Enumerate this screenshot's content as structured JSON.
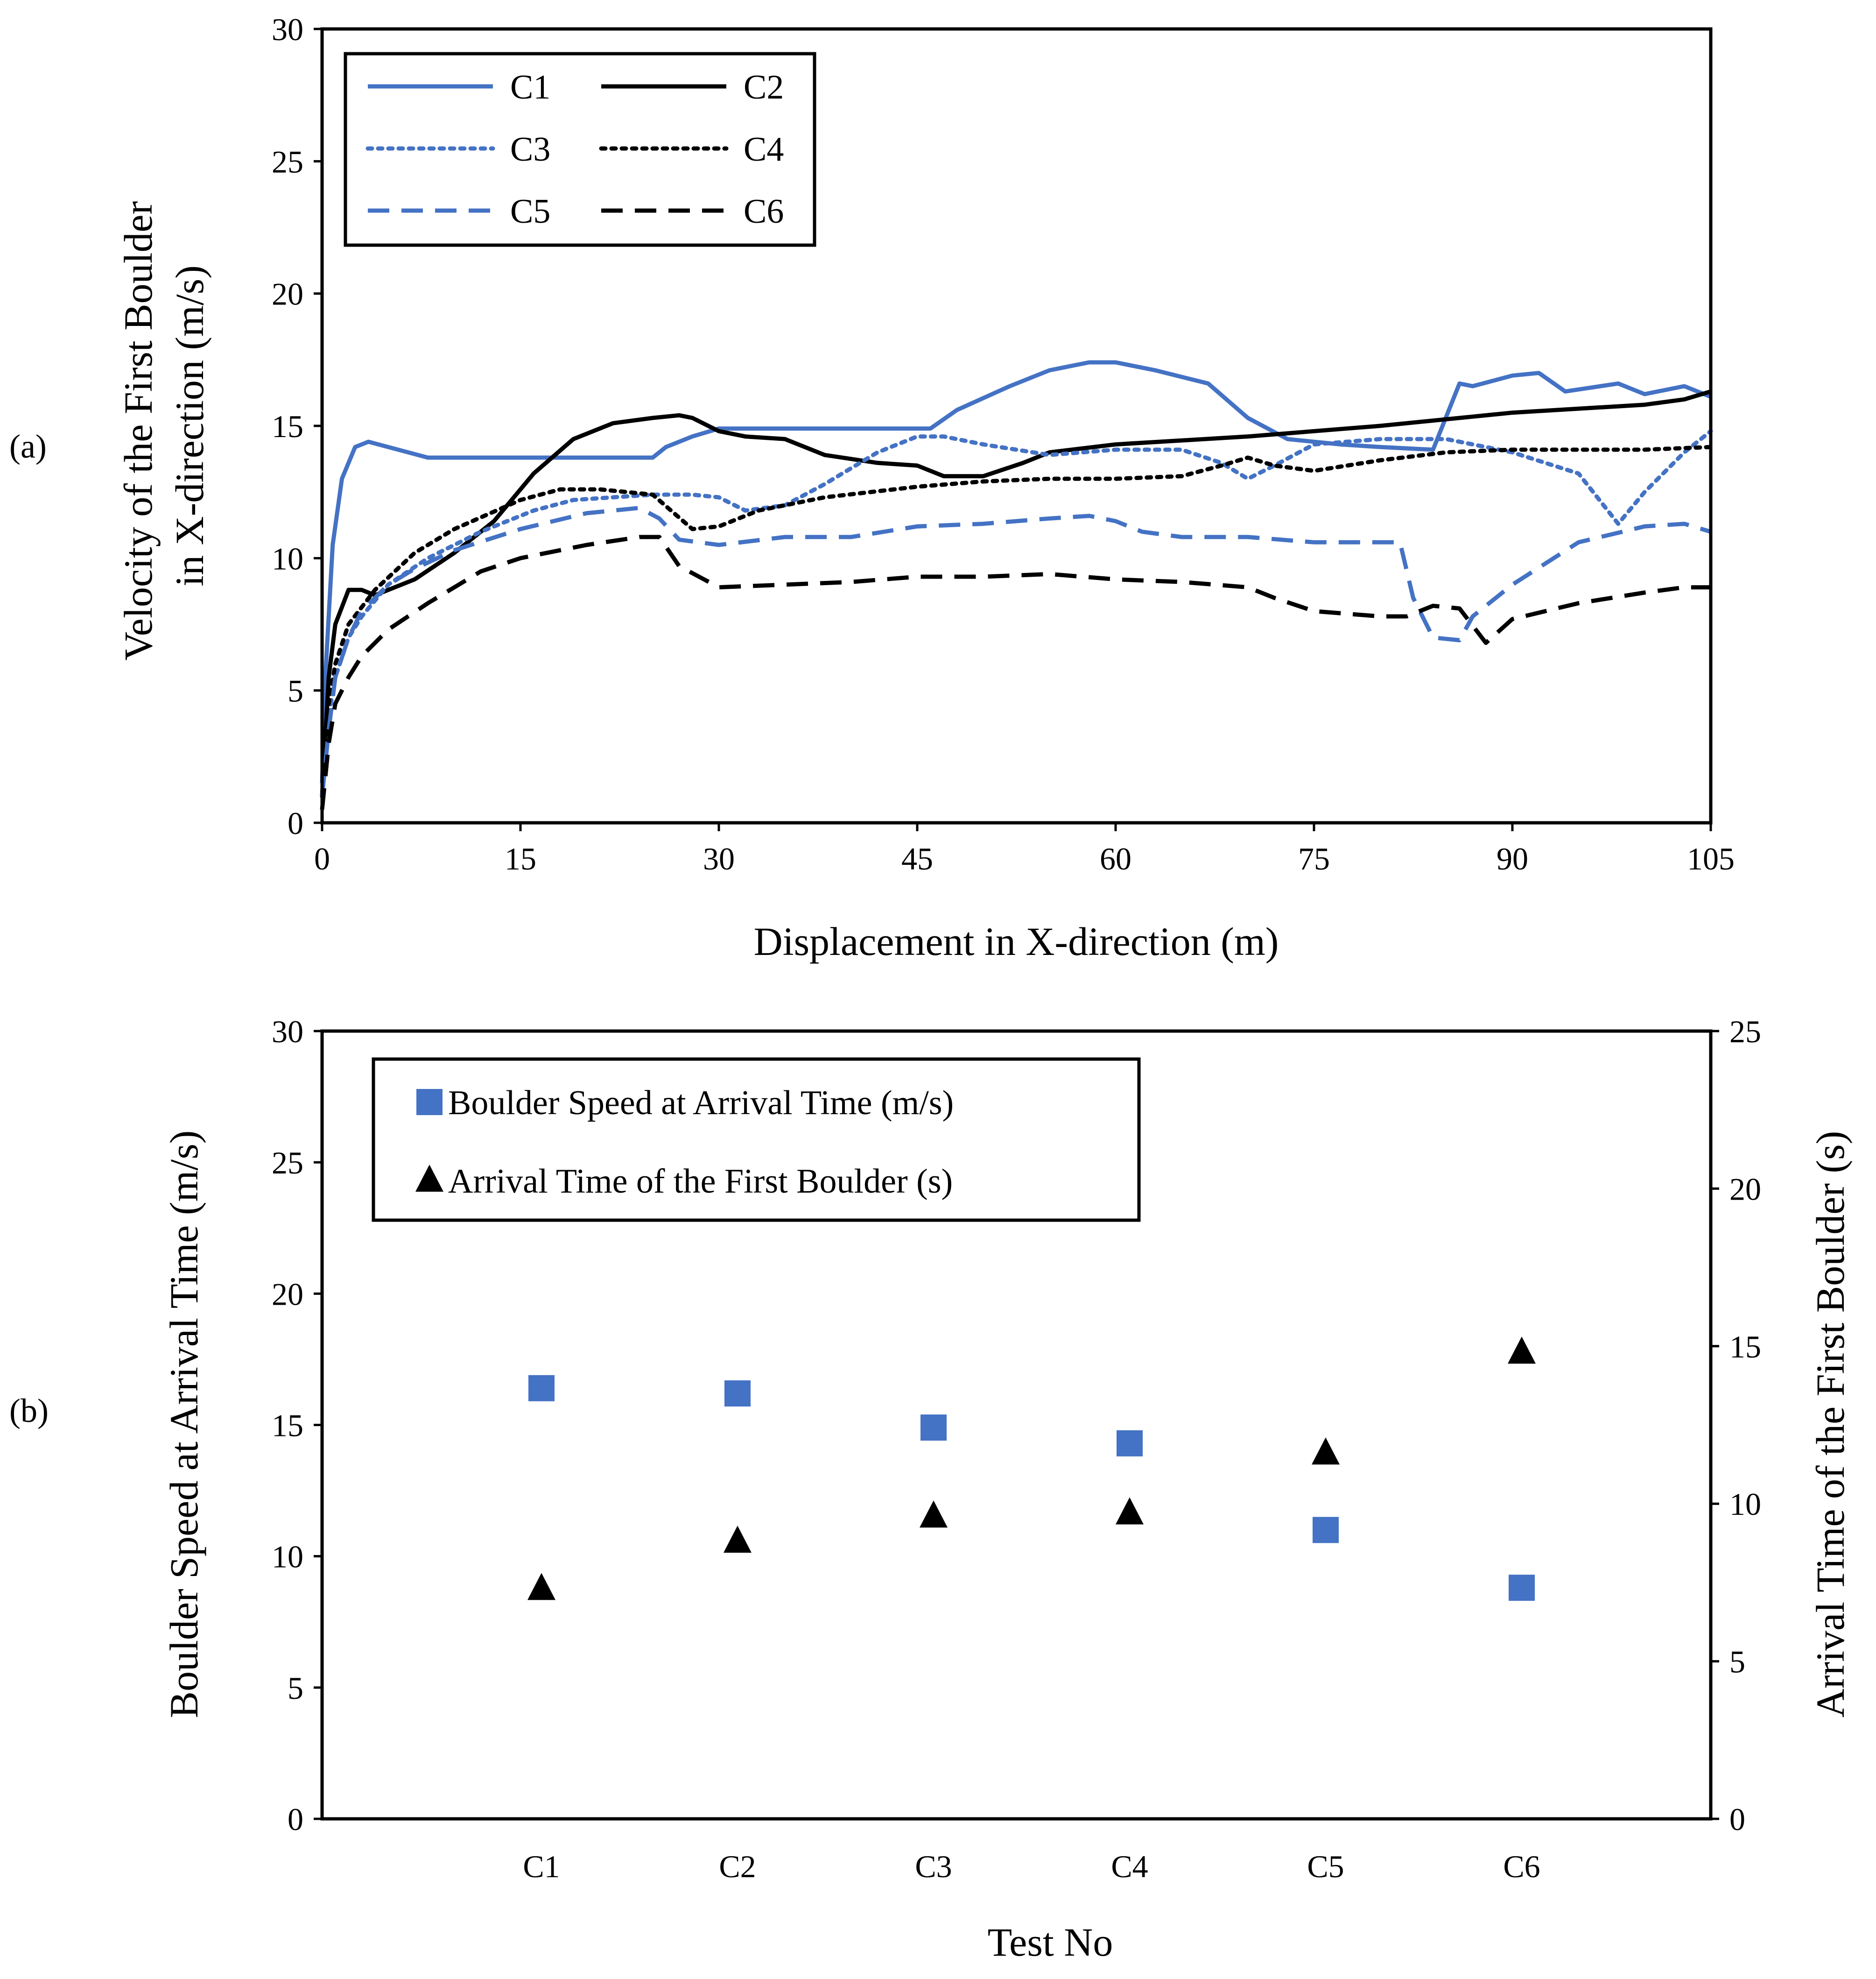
{
  "chart_data": [
    {
      "panel_label": "(a)",
      "type": "line",
      "xlabel": "Displacement in X-direction (m)",
      "ylabel_lines": [
        "Velocity of the First Boulder",
        "in X-direction (m/s)"
      ],
      "xlim": [
        0,
        105
      ],
      "ylim": [
        0,
        30
      ],
      "xticks": [
        0,
        15,
        30,
        45,
        60,
        75,
        90,
        105
      ],
      "yticks": [
        0,
        5,
        10,
        15,
        20,
        25,
        30
      ],
      "grid": false,
      "legend_position": "top-left",
      "series": [
        {
          "name": "C1",
          "color": "#4472C4",
          "dash": "solid",
          "x": [
            0,
            0.3,
            0.8,
            1.5,
            2.5,
            3.5,
            5,
            8,
            10,
            15,
            20,
            25,
            26,
            28,
            30,
            32,
            35,
            40,
            46,
            48,
            52,
            55,
            58,
            60,
            63,
            67,
            70,
            73,
            77,
            80,
            84,
            86,
            87,
            90,
            92,
            94,
            98,
            100,
            103,
            105
          ],
          "y": [
            1.5,
            6,
            10.5,
            13,
            14.2,
            14.4,
            14.2,
            13.8,
            13.8,
            13.8,
            13.8,
            13.8,
            14.2,
            14.6,
            14.9,
            14.9,
            14.9,
            14.9,
            14.9,
            15.6,
            16.5,
            17.1,
            17.4,
            17.4,
            17.1,
            16.6,
            15.3,
            14.5,
            14.3,
            14.2,
            14.1,
            16.6,
            16.5,
            16.9,
            17.0,
            16.3,
            16.6,
            16.2,
            16.5,
            16.1
          ]
        },
        {
          "name": "C2",
          "color": "#000000",
          "dash": "solid",
          "x": [
            0,
            0.5,
            1,
            2,
            3,
            4,
            7,
            10,
            13,
            16,
            19,
            22,
            25,
            27,
            28,
            30,
            32,
            35,
            38,
            42,
            45,
            47,
            50,
            53,
            55,
            60,
            70,
            80,
            90,
            100,
            103,
            105
          ],
          "y": [
            1,
            5.5,
            7.5,
            8.8,
            8.8,
            8.6,
            9.2,
            10.2,
            11.4,
            13.2,
            14.5,
            15.1,
            15.3,
            15.4,
            15.3,
            14.8,
            14.6,
            14.5,
            13.9,
            13.6,
            13.5,
            13.1,
            13.1,
            13.6,
            14.0,
            14.3,
            14.6,
            15.0,
            15.5,
            15.8,
            16.0,
            16.3
          ]
        },
        {
          "name": "C3",
          "color": "#4472C4",
          "dash": "dotted",
          "x": [
            0,
            0.5,
            1,
            2,
            3,
            5,
            8,
            12,
            16,
            19,
            22,
            25,
            28,
            30,
            32,
            35,
            38,
            42,
            45,
            47,
            50,
            55,
            60,
            65,
            68,
            70,
            72,
            75,
            80,
            85,
            90,
            95,
            98,
            100,
            103,
            105
          ],
          "y": [
            1,
            4,
            5.5,
            7,
            7.8,
            9,
            10,
            11,
            11.8,
            12.2,
            12.3,
            12.4,
            12.4,
            12.3,
            11.8,
            12.0,
            12.8,
            14.0,
            14.6,
            14.6,
            14.3,
            13.9,
            14.1,
            14.1,
            13.6,
            13.0,
            13.5,
            14.3,
            14.5,
            14.5,
            14.0,
            13.2,
            11.3,
            12.5,
            14.0,
            14.8
          ]
        },
        {
          "name": "C4",
          "color": "#000000",
          "dash": "dotted",
          "x": [
            0,
            0.5,
            1,
            2,
            4,
            7,
            10,
            15,
            18,
            21,
            25,
            28,
            30,
            33,
            38,
            45,
            50,
            55,
            60,
            65,
            68,
            70,
            72,
            75,
            80,
            85,
            90,
            95,
            100,
            105
          ],
          "y": [
            1,
            4.5,
            6,
            7.5,
            8.8,
            10.2,
            11.1,
            12.2,
            12.6,
            12.6,
            12.4,
            11.1,
            11.2,
            11.8,
            12.3,
            12.7,
            12.9,
            13.0,
            13.0,
            13.1,
            13.5,
            13.8,
            13.5,
            13.3,
            13.7,
            14.0,
            14.1,
            14.1,
            14.1,
            14.2
          ]
        },
        {
          "name": "C5",
          "color": "#4472C4",
          "dash": "dashed",
          "x": [
            0,
            0.5,
            1,
            2,
            3,
            5,
            7,
            10,
            15,
            20,
            24,
            25.5,
            27,
            30,
            35,
            40,
            45,
            50,
            55,
            58,
            60,
            62,
            65,
            70,
            75,
            80,
            81.5,
            82.5,
            84,
            86,
            87,
            90,
            95,
            100,
            103,
            105
          ],
          "y": [
            1,
            3.5,
            5.5,
            7,
            8,
            9,
            9.6,
            10.3,
            11.1,
            11.7,
            11.9,
            11.5,
            10.7,
            10.5,
            10.8,
            10.8,
            11.2,
            11.3,
            11.5,
            11.6,
            11.4,
            11.0,
            10.8,
            10.8,
            10.6,
            10.6,
            10.6,
            8.5,
            7.0,
            6.9,
            7.8,
            9.0,
            10.6,
            11.2,
            11.3,
            11.0
          ]
        },
        {
          "name": "C6",
          "color": "#000000",
          "dash": "dashed",
          "x": [
            0,
            0.5,
            1,
            2,
            3,
            5,
            8,
            12,
            15,
            20,
            24,
            25.5,
            27,
            30,
            35,
            40,
            45,
            50,
            55,
            60,
            65,
            70,
            72,
            75,
            80,
            82,
            84,
            86,
            88,
            90,
            95,
            100,
            103,
            105
          ],
          "y": [
            0.5,
            3,
            4.5,
            5.5,
            6.3,
            7.3,
            8.3,
            9.5,
            10.0,
            10.5,
            10.8,
            10.8,
            9.7,
            8.9,
            9.0,
            9.1,
            9.3,
            9.3,
            9.4,
            9.2,
            9.1,
            8.9,
            8.5,
            8.0,
            7.8,
            7.8,
            8.2,
            8.1,
            6.8,
            7.7,
            8.3,
            8.7,
            8.9,
            8.9
          ]
        }
      ]
    },
    {
      "panel_label": "(b)",
      "type": "scatter",
      "xlabel": "Test No",
      "ylabel": "Boulder Speed at Arrival Time (m/s)",
      "ylabel_right": "Arrival Time of the First Boulder (s)",
      "categories": [
        "C1",
        "C2",
        "C3",
        "C4",
        "C5",
        "C6"
      ],
      "ylim": [
        0,
        30
      ],
      "ylim_right": [
        0,
        25
      ],
      "yticks": [
        0,
        5,
        10,
        15,
        20,
        25,
        30
      ],
      "yticks_right": [
        0,
        5,
        10,
        15,
        20,
        25
      ],
      "grid": false,
      "legend_position": "top-left",
      "series": [
        {
          "name": "Boulder Speed at Arrival Time (m/s)",
          "marker": "square",
          "color": "#4472C4",
          "axis": "left",
          "values": [
            16.4,
            16.2,
            14.9,
            14.3,
            11.0,
            8.8
          ]
        },
        {
          "name": "Arrival Time of the First Boulder (s)",
          "marker": "triangle",
          "color": "#000000",
          "axis": "right",
          "values": [
            7.3,
            8.8,
            9.6,
            9.7,
            11.6,
            14.8
          ]
        }
      ]
    }
  ]
}
